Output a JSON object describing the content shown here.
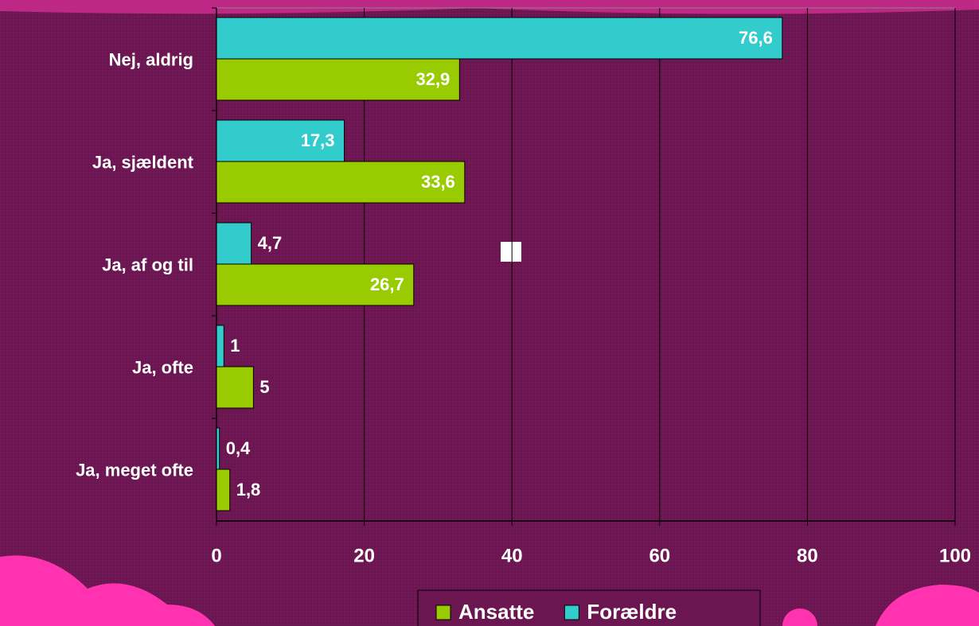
{
  "chart_data": {
    "type": "hbar",
    "categories": [
      "Nej, aldrig",
      "Ja, sjældent",
      "Ja, af og til",
      "Ja, ofte",
      "Ja, meget ofte"
    ],
    "series": [
      {
        "name": "Forældre",
        "color": "#33cccc",
        "values": [
          76.6,
          17.3,
          4.7,
          1,
          0.4
        ],
        "value_labels": [
          "76,6",
          "17,3",
          "4,7",
          "1",
          "0,4"
        ]
      },
      {
        "name": "Ansatte",
        "color": "#99cc00",
        "values": [
          32.9,
          33.6,
          26.7,
          5,
          1.8
        ],
        "value_labels": [
          "32,9",
          "33,6",
          "26,7",
          "5",
          "1,8"
        ]
      }
    ],
    "xlim": [
      0,
      100
    ],
    "xticks": [
      0,
      20,
      40,
      60,
      80,
      100
    ],
    "grid": true,
    "legend": "bottom"
  }
}
